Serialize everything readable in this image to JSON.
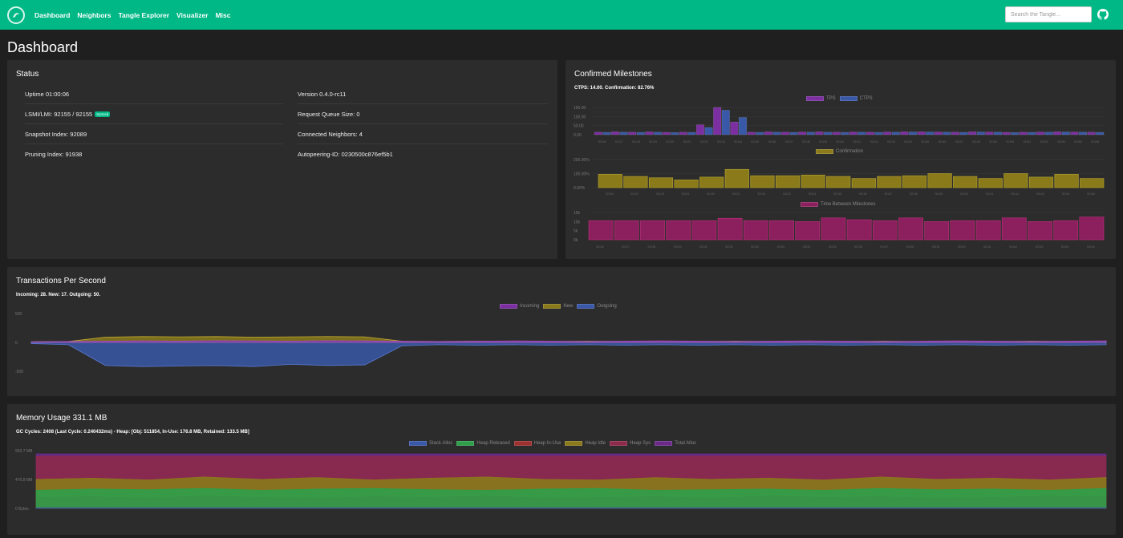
{
  "nav": {
    "links": [
      "Dashboard",
      "Neighbors",
      "Tangle Explorer",
      "Visualizer",
      "Misc"
    ],
    "search_placeholder": "Search the Tangle..."
  },
  "page_title": "Dashboard",
  "status": {
    "title": "Status",
    "left": [
      "Uptime 01:00:06",
      "LSMI/LMI: 92155 / 92155",
      "Snapshot Index: 92089",
      "Pruning Index: 91938"
    ],
    "synced_badge": "Synced",
    "right": [
      "Version 0.4.0-rc11",
      "Request Queue Size: 0",
      "Connected Neighbors: 4",
      "Autopeering-ID: 0230500c876ef5b1"
    ]
  },
  "milestones": {
    "title": "Confirmed Milestones",
    "subtitle": "CTPS: 14.00. Confirmation: 82.76%",
    "colors": {
      "tps": "#7b2fa0",
      "ctps": "#3a58a8",
      "confirmation": "#8a7a1a",
      "time": "#8c1f5e"
    }
  },
  "tps": {
    "title": "Transactions Per Second",
    "subtitle": "Incoming: 28. New: 17. Outgoing: 50.",
    "colors": {
      "incoming": "#7b2fa0",
      "new": "#8a7a1a",
      "outgoing": "#3a58a8"
    }
  },
  "memory": {
    "title": "Memory Usage 331.1 MB",
    "subtitle": "GC Cycles: 2408 (Last Cycle: 0.240432ms) - Heap: [Obj: 511854, In-Use: 176.8 MB, Retained: 133.5 MB]",
    "colors": {
      "stack": "#3a58a8",
      "released": "#2e9e4a",
      "inuse": "#9e3030",
      "idle": "#8a7a1a",
      "sys": "#8c2a4a",
      "total": "#6b2a8a"
    }
  },
  "chart_data": [
    {
      "type": "bar",
      "categories": [
        "92126",
        "92127",
        "92128",
        "92129",
        "92130",
        "92131",
        "92132",
        "92133",
        "92134",
        "92135",
        "92136",
        "92137",
        "92138",
        "92139",
        "92140",
        "92141",
        "92142",
        "92143",
        "92144",
        "92145",
        "92146",
        "92147",
        "92148",
        "92149",
        "92150",
        "92151",
        "92152",
        "92153",
        "92154",
        "92155"
      ],
      "series": [
        {
          "name": "TPS",
          "values": [
            14,
            16,
            14,
            16,
            13,
            14,
            55,
            150,
            70,
            14,
            16,
            14,
            15,
            16,
            14,
            15,
            14,
            15,
            16,
            16,
            15,
            14,
            16,
            15,
            13,
            14,
            15,
            16,
            15,
            14
          ]
        },
        {
          "name": "CTPS",
          "values": [
            13,
            14,
            13,
            14,
            12,
            13,
            40,
            135,
            95,
            13,
            14,
            13,
            14,
            14,
            13,
            14,
            13,
            14,
            15,
            15,
            14,
            13,
            15,
            14,
            12,
            13,
            14,
            15,
            14,
            13
          ]
        }
      ],
      "y_ticks": [
        "150.00",
        "100.00",
        "50.00",
        "0.00"
      ],
      "xlabel": "",
      "ylabel": ""
    },
    {
      "type": "bar",
      "categories": [
        "92126",
        "92127",
        "92128",
        "92129",
        "92130",
        "92131",
        "92132",
        "92133",
        "92134",
        "92135",
        "92136",
        "92137",
        "92138",
        "92139",
        "92140",
        "92141",
        "92142",
        "92143",
        "92144",
        "92145"
      ],
      "series": [
        {
          "name": "Confirmation",
          "values": [
            95,
            80,
            70,
            55,
            75,
            130,
            85,
            85,
            90,
            80,
            65,
            80,
            85,
            100,
            80,
            65,
            100,
            75,
            95,
            65
          ]
        }
      ],
      "y_ticks": [
        "200.00%",
        "100.00%",
        "0.00%"
      ]
    },
    {
      "type": "bar",
      "categories": [
        "92126",
        "92127",
        "92128",
        "92129",
        "92130",
        "92131",
        "92132",
        "92133",
        "92134",
        "92135",
        "92136",
        "92137",
        "92138",
        "92139",
        "92140",
        "92141",
        "92142",
        "92143",
        "92144",
        "92145"
      ],
      "series": [
        {
          "name": "Time Between Milestones",
          "values": [
            10.5,
            10.5,
            10.5,
            10.5,
            10.5,
            11.8,
            10.5,
            10.5,
            10,
            12,
            11,
            10.5,
            12,
            10,
            10.5,
            10.5,
            12,
            10,
            10.5,
            12.5
          ]
        }
      ],
      "y_ticks": [
        "15k",
        "10k",
        "5k",
        "0k"
      ]
    },
    {
      "type": "area",
      "y_ticks": [
        "500",
        "0",
        "-500"
      ],
      "series": [
        {
          "name": "Incoming",
          "values": [
            10,
            15,
            20,
            25,
            20,
            30,
            25,
            20,
            30,
            25,
            20,
            15,
            20,
            25,
            20,
            15,
            20,
            25,
            20,
            15,
            20,
            25,
            20,
            15,
            20,
            25,
            20,
            15,
            20,
            25
          ]
        },
        {
          "name": "New",
          "values": [
            10,
            15,
            90,
            100,
            95,
            100,
            90,
            95,
            100,
            95,
            20,
            15,
            20,
            20,
            15,
            20,
            15,
            20,
            15,
            20,
            15,
            20,
            15,
            20,
            15,
            20,
            15,
            20,
            15,
            20
          ]
        },
        {
          "name": "Outgoing",
          "values": [
            -20,
            -40,
            -400,
            -420,
            -410,
            -400,
            -420,
            -380,
            -400,
            -390,
            -60,
            -40,
            -50,
            -40,
            -50,
            -40,
            -50,
            -40,
            -50,
            -40,
            -50,
            -40,
            -50,
            -40,
            -50,
            -40,
            -50,
            -40,
            -50,
            -40
          ]
        }
      ]
    },
    {
      "type": "area",
      "y_ticks": [
        "953.7 MB",
        "476.8 MB",
        "0 Bytes"
      ],
      "series": [
        {
          "name": "Stack Alloc",
          "values": [
            10,
            10,
            10,
            10,
            10,
            10,
            10,
            10,
            10,
            10,
            10,
            10,
            10,
            10,
            10,
            10,
            10,
            10,
            10,
            10
          ]
        },
        {
          "name": "Heap Released",
          "values": [
            300,
            320,
            310,
            330,
            300,
            320,
            330,
            310,
            300,
            320,
            330,
            300,
            310,
            320,
            300,
            330,
            310,
            320,
            300,
            330
          ]
        },
        {
          "name": "Heap In-Use",
          "values": [
            180,
            190,
            170,
            200,
            180,
            170,
            190,
            180,
            200,
            170,
            180,
            190,
            170,
            200,
            180,
            190,
            170,
            180,
            200,
            190
          ]
        },
        {
          "name": "Heap Idle",
          "values": [
            480,
            500,
            470,
            520,
            480,
            510,
            470,
            500,
            520,
            480,
            470,
            510,
            480,
            500,
            470,
            520,
            480,
            500,
            470,
            510
          ]
        },
        {
          "name": "Heap Sys",
          "values": [
            860,
            860,
            860,
            860,
            860,
            860,
            860,
            860,
            860,
            860,
            860,
            860,
            860,
            860,
            860,
            860,
            860,
            860,
            860,
            860
          ]
        },
        {
          "name": "Total Alloc",
          "values": [
            900,
            900,
            900,
            900,
            900,
            900,
            900,
            900,
            900,
            900,
            900,
            900,
            900,
            900,
            900,
            900,
            900,
            900,
            900,
            900
          ]
        }
      ]
    }
  ]
}
